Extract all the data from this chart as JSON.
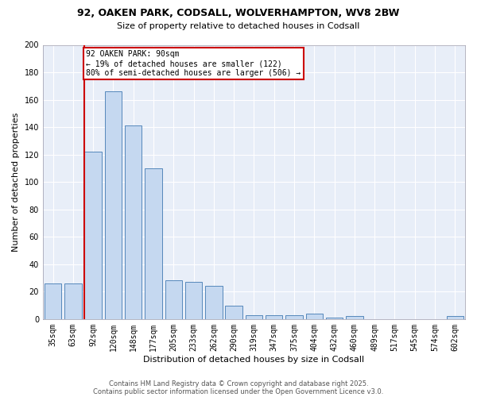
{
  "title1": "92, OAKEN PARK, CODSALL, WOLVERHAMPTON, WV8 2BW",
  "title2": "Size of property relative to detached houses in Codsall",
  "xlabel": "Distribution of detached houses by size in Codsall",
  "ylabel": "Number of detached properties",
  "categories": [
    "35sqm",
    "63sqm",
    "92sqm",
    "120sqm",
    "148sqm",
    "177sqm",
    "205sqm",
    "233sqm",
    "262sqm",
    "290sqm",
    "319sqm",
    "347sqm",
    "375sqm",
    "404sqm",
    "432sqm",
    "460sqm",
    "489sqm",
    "517sqm",
    "545sqm",
    "574sqm",
    "602sqm"
  ],
  "values": [
    26,
    26,
    122,
    166,
    141,
    110,
    28,
    27,
    24,
    10,
    3,
    3,
    3,
    4,
    1,
    2,
    0,
    0,
    0,
    0,
    2
  ],
  "bar_color": "#c5d8f0",
  "bar_edge_color": "#5588bb",
  "vline_x_index": 2,
  "vline_color": "#cc0000",
  "annotation_text": "92 OAKEN PARK: 90sqm\n← 19% of detached houses are smaller (122)\n80% of semi-detached houses are larger (506) →",
  "annotation_box_color": "#ffffff",
  "annotation_box_edge_color": "#cc0000",
  "ylim": [
    0,
    200
  ],
  "yticks": [
    0,
    20,
    40,
    60,
    80,
    100,
    120,
    140,
    160,
    180,
    200
  ],
  "fig_bg_color": "#ffffff",
  "plot_bg_color": "#e8eef8",
  "grid_color": "#ffffff",
  "footer1": "Contains HM Land Registry data © Crown copyright and database right 2025.",
  "footer2": "Contains public sector information licensed under the Open Government Licence v3.0."
}
